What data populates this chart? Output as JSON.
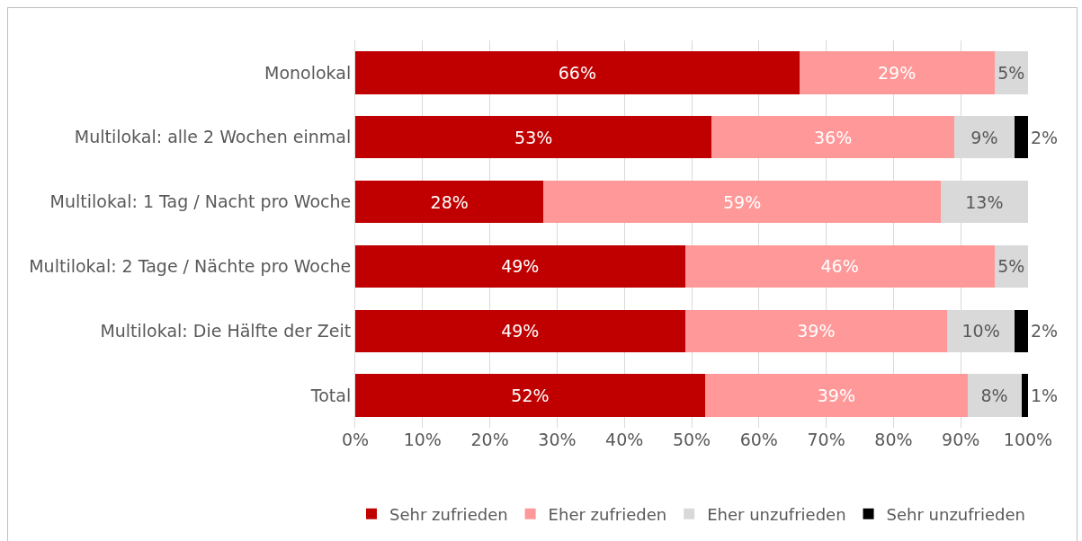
{
  "chart_data": {
    "type": "bar",
    "orientation": "horizontal",
    "stacked": true,
    "grid": "x",
    "legend": "bottom",
    "categories": [
      "Monolokal",
      "Multilokal: alle 2 Wochen einmal",
      "Multilokal: 1 Tag / Nacht pro Woche",
      "Multilokal: 2 Tage / Nächte pro Woche",
      "Multilokal: Die Hälfte der Zeit",
      "Total"
    ],
    "xlim": [
      0,
      100
    ],
    "xticks": [
      {
        "value": 0,
        "label": "0%"
      },
      {
        "value": 10,
        "label": "10%"
      },
      {
        "value": 20,
        "label": "20%"
      },
      {
        "value": 30,
        "label": "30%"
      },
      {
        "value": 40,
        "label": "40%"
      },
      {
        "value": 50,
        "label": "50%"
      },
      {
        "value": 60,
        "label": "60%"
      },
      {
        "value": 70,
        "label": "70%"
      },
      {
        "value": 80,
        "label": "80%"
      },
      {
        "value": 90,
        "label": "90%"
      },
      {
        "value": 100,
        "label": "100%"
      }
    ],
    "series": [
      {
        "name": "Sehr zufrieden",
        "color": "#c00000",
        "values": [
          66,
          53,
          28,
          49,
          49,
          52
        ],
        "value_labels": [
          "66%",
          "53%",
          "28%",
          "49%",
          "49%",
          "52%"
        ]
      },
      {
        "name": "Eher zufrieden",
        "color": "#ff9999",
        "values": [
          29,
          36,
          59,
          46,
          39,
          39
        ],
        "value_labels": [
          "29%",
          "36%",
          "59%",
          "46%",
          "39%",
          "39%"
        ]
      },
      {
        "name": "Eher unzufrieden",
        "color": "#d9d9d9",
        "values": [
          5,
          9,
          13,
          5,
          10,
          8
        ],
        "value_labels": [
          "5%",
          "9%",
          "13%",
          "5%",
          "10%",
          "8%"
        ]
      },
      {
        "name": "Sehr unzufrieden",
        "color": "#000000",
        "values": [
          null,
          2,
          null,
          null,
          2,
          1
        ],
        "value_labels": [
          null,
          "2%",
          null,
          null,
          "2%",
          "1%"
        ]
      }
    ]
  }
}
